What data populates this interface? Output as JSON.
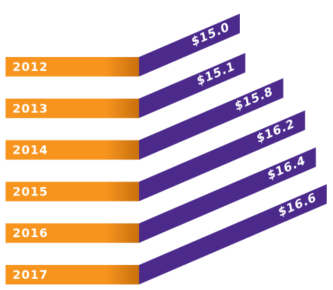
{
  "chart_data": {
    "type": "bar",
    "categories": [
      "2012",
      "2013",
      "2014",
      "2015",
      "2016",
      "2017"
    ],
    "values": [
      15.0,
      15.1,
      15.8,
      16.2,
      16.4,
      16.6
    ],
    "value_labels": [
      "$15.0",
      "$15.1",
      "$15.8",
      "$16.2",
      "$16.4",
      "$16.6"
    ],
    "color": "#4b2a8c",
    "category_color": "#f7941d"
  }
}
